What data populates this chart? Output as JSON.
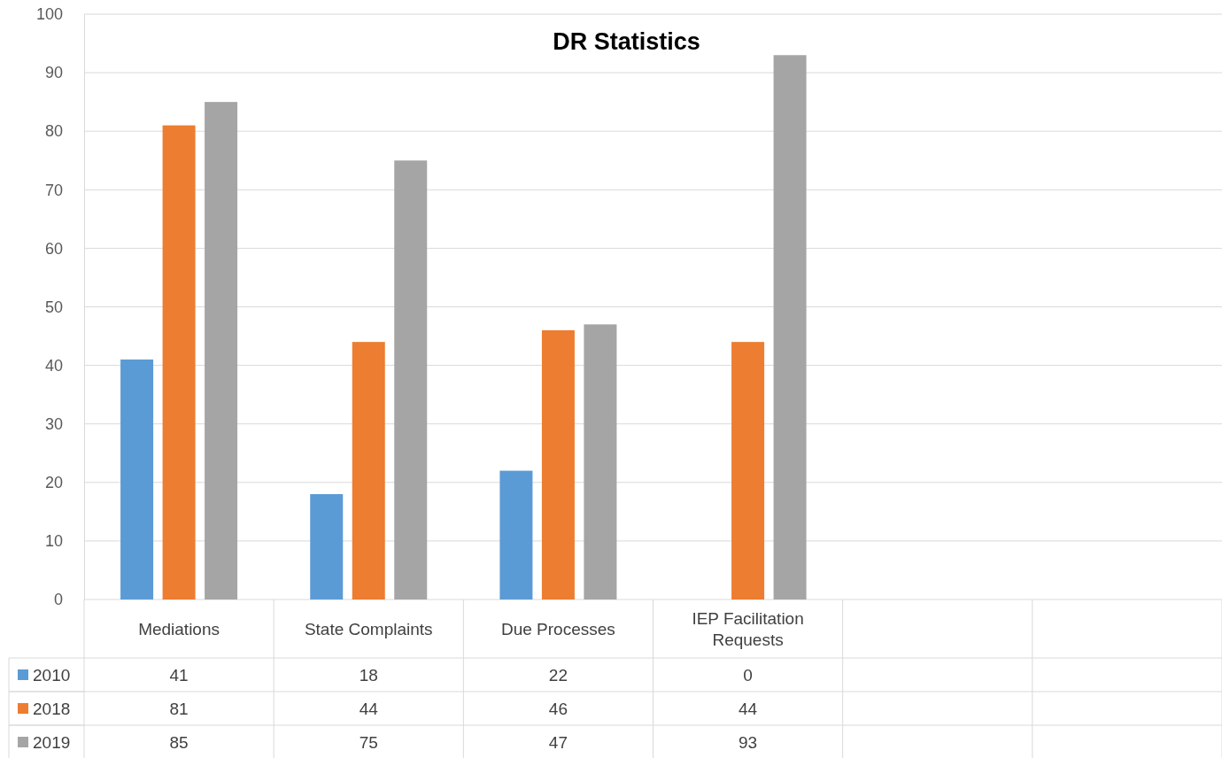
{
  "chart_data": {
    "type": "bar",
    "title": "DR Statistics",
    "categories": [
      "Mediations",
      "State Complaints",
      "Due Processes",
      "IEP Facilitation Requests",
      null,
      null
    ],
    "series": [
      {
        "name": "2010",
        "color": "#5b9bd5",
        "values": [
          41,
          18,
          22,
          0,
          null,
          null
        ]
      },
      {
        "name": "2018",
        "color": "#ed7d31",
        "values": [
          81,
          44,
          46,
          44,
          null,
          null
        ]
      },
      {
        "name": "2019",
        "color": "#a5a5a5",
        "values": [
          85,
          75,
          47,
          93,
          null,
          null
        ]
      }
    ],
    "ylim": [
      0,
      100
    ],
    "yticks": [
      0,
      10,
      20,
      30,
      40,
      50,
      60,
      70,
      80,
      90,
      100
    ],
    "grid": true,
    "legend": "bottom",
    "data_labels": true
  }
}
